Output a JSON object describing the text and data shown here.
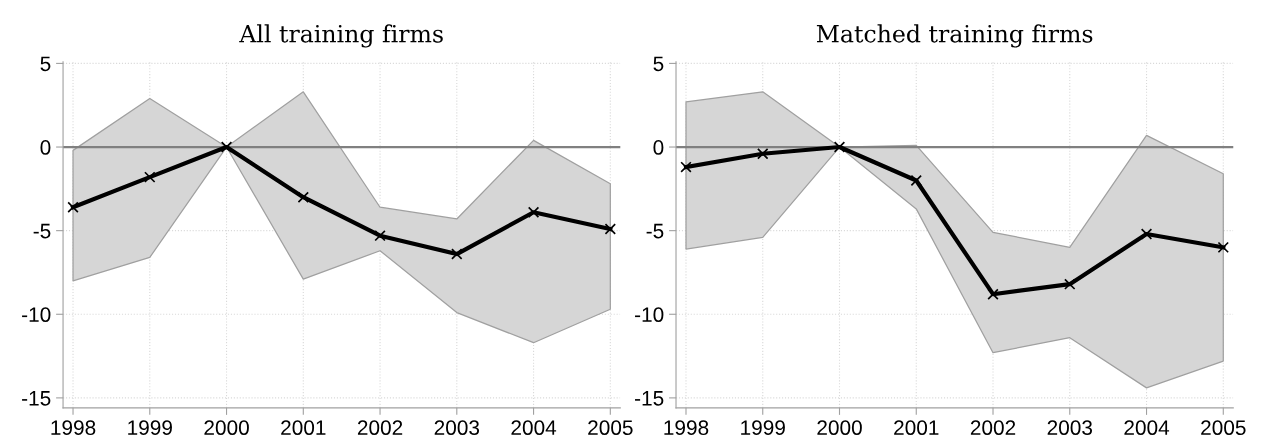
{
  "chart_data": [
    {
      "type": "line",
      "title": "All training firms",
      "x": [
        1998,
        1999,
        2000,
        2001,
        2002,
        2003,
        2004,
        2005
      ],
      "series": [
        {
          "color": "#000000",
          "values": [
            -3.6,
            -1.8,
            0,
            -3.0,
            -5.3,
            -6.4,
            -3.9,
            -4.9
          ],
          "lower": [
            -8.0,
            -6.6,
            0,
            -7.9,
            -6.2,
            -9.9,
            -11.7,
            -9.7
          ],
          "upper": [
            -0.2,
            2.9,
            0,
            3.3,
            -3.6,
            -4.3,
            0.4,
            -2.2
          ]
        }
      ],
      "xlim": [
        1997.87,
        2005.13
      ],
      "xticks": [
        1998,
        1999,
        2000,
        2001,
        2002,
        2003,
        2004,
        2005
      ],
      "ylim": [
        -15.6,
        5.1
      ],
      "yticks": [
        -15,
        -10,
        -5,
        0,
        5
      ],
      "ref_lines": [
        {
          "axis": "y",
          "value": 0,
          "color": "#808080"
        }
      ],
      "grid": true,
      "marker": "cross",
      "line_style": "solid"
    },
    {
      "type": "line",
      "title": "Matched training firms",
      "x": [
        1998,
        1999,
        2000,
        2001,
        2002,
        2003,
        2004,
        2005
      ],
      "series": [
        {
          "color": "#000000",
          "values": [
            -1.2,
            -0.4,
            0,
            -2.0,
            -8.8,
            -8.2,
            -5.2,
            -6.0
          ],
          "lower": [
            -6.1,
            -5.4,
            0,
            -3.7,
            -12.3,
            -11.4,
            -14.4,
            -12.8
          ],
          "upper": [
            2.7,
            3.3,
            0,
            0.1,
            -5.1,
            -6.0,
            0.7,
            -1.6
          ]
        }
      ],
      "xlim": [
        1997.87,
        2005.13
      ],
      "xticks": [
        1998,
        1999,
        2000,
        2001,
        2002,
        2003,
        2004,
        2005
      ],
      "ylim": [
        -15.6,
        5.1
      ],
      "yticks": [
        -15,
        -10,
        -5,
        0,
        5
      ],
      "ref_lines": [
        {
          "axis": "y",
          "value": 0,
          "color": "#808080"
        }
      ],
      "grid": true,
      "marker": "cross",
      "line_style": "solid"
    }
  ]
}
